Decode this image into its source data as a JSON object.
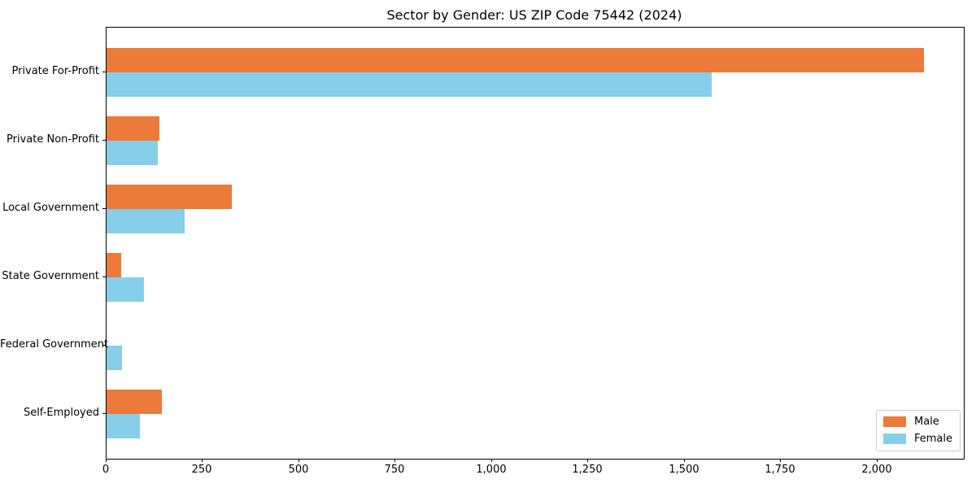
{
  "title": "Sector by Gender: US ZIP Code 75442 (2024)",
  "colors": {
    "male": "#EB7A3B",
    "female": "#87CEEB",
    "axis": "#000000",
    "legend_border": "#cccccc",
    "background": "#ffffff"
  },
  "legend": {
    "position": "lower right",
    "entries": [
      "Male",
      "Female"
    ]
  },
  "chart_data": {
    "type": "bar",
    "orientation": "horizontal",
    "title": "Sector by Gender: US ZIP Code 75442 (2024)",
    "xlabel": "",
    "ylabel": "",
    "grid": false,
    "categories": [
      "Private For-Profit",
      "Private Non-Profit",
      "Local Government",
      "State Government",
      "Federal Government",
      "Self-Employed"
    ],
    "series": [
      {
        "name": "Male",
        "color": "#EB7A3B",
        "values": [
          2120,
          137,
          325,
          39,
          0,
          143
        ]
      },
      {
        "name": "Female",
        "color": "#87CEEB",
        "values": [
          1570,
          133,
          203,
          97,
          41,
          87
        ]
      }
    ],
    "xlim": [
      0,
      2224
    ],
    "xticks": [
      0,
      250,
      500,
      750,
      1000,
      1250,
      1500,
      1750,
      2000
    ],
    "xtick_labels": [
      "0",
      "250",
      "500",
      "750",
      "1,000",
      "1,250",
      "1,500",
      "1,750",
      "2,000"
    ],
    "legend_position": "lower right"
  }
}
